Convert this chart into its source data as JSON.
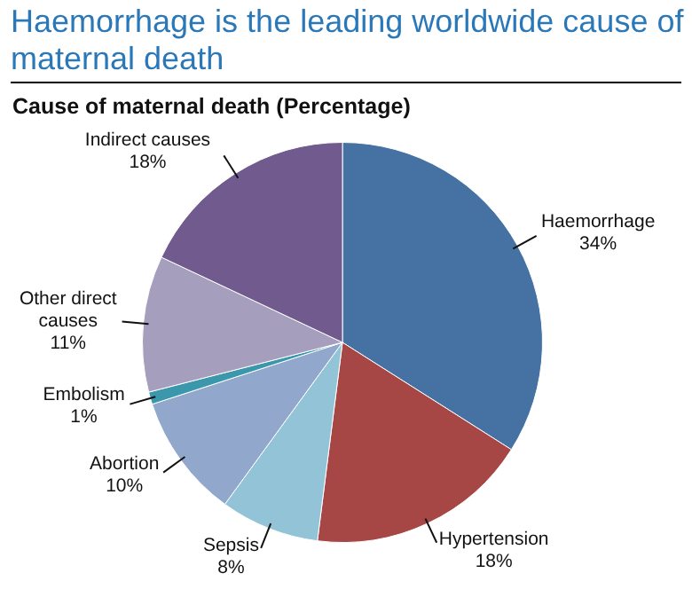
{
  "chart_data": {
    "type": "pie",
    "title": "Haemorrhage is the leading worldwide cause of maternal death",
    "subtitle": "Cause of maternal death (Percentage)",
    "categories": [
      "Haemorrhage",
      "Hypertension",
      "Sepsis",
      "Abortion",
      "Embolism",
      "Other direct causes",
      "Indirect causes"
    ],
    "values": [
      34,
      18,
      8,
      10,
      1,
      11,
      18
    ],
    "value_labels": [
      "34%",
      "18%",
      "8%",
      "10%",
      "1%",
      "11%",
      "18%"
    ],
    "colors": [
      "#4671a3",
      "#a64745",
      "#93c3d7",
      "#91a7cb",
      "#3a97ac",
      "#a69ebd",
      "#705a8e"
    ],
    "legend": false
  }
}
